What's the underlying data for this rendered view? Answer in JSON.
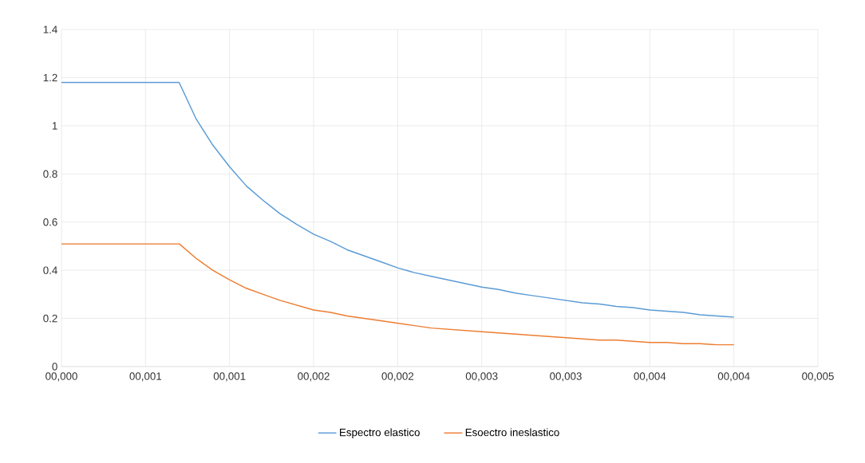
{
  "chart_data": {
    "type": "line",
    "categories": [
      "00,000",
      null,
      null,
      null,
      null,
      "00,001",
      null,
      null,
      null,
      null,
      "00,001",
      null,
      null,
      null,
      null,
      "00,002",
      null,
      null,
      null,
      null,
      "00,002",
      null,
      null,
      null,
      null,
      "00,003",
      null,
      null,
      null,
      null,
      "00,003",
      null,
      null,
      null,
      null,
      "00,004",
      null,
      null,
      null,
      null,
      "00,004",
      null,
      null,
      null,
      null,
      "00,005"
    ],
    "ylim": [
      0,
      1.4
    ],
    "yticks": [
      0,
      0.2,
      0.4,
      0.6,
      0.8,
      1,
      1.2,
      1.4
    ],
    "grid": true,
    "legend": "bottom",
    "marker": "none",
    "line_style": "solid",
    "series": [
      {
        "name": "Espectro elastico",
        "color": "#5b9bd5",
        "values": [
          1.18,
          1.18,
          1.18,
          1.18,
          1.18,
          1.18,
          1.18,
          1.18,
          1.03,
          0.92,
          0.83,
          0.75,
          0.69,
          0.635,
          0.59,
          0.55,
          0.52,
          0.485,
          0.46,
          0.435,
          0.41,
          0.39,
          0.375,
          0.36,
          0.345,
          0.33,
          0.32,
          0.305,
          0.295,
          0.285,
          0.275,
          0.265,
          0.26,
          0.25,
          0.245,
          0.235,
          0.23,
          0.225,
          0.215,
          0.21,
          0.205,
          null,
          null,
          null,
          null,
          null
        ]
      },
      {
        "name": "Esoectro ineslastico",
        "color": "#ed7d31",
        "values": [
          0.51,
          0.51,
          0.51,
          0.51,
          0.51,
          0.51,
          0.51,
          0.51,
          0.45,
          0.4,
          0.36,
          0.325,
          0.3,
          0.275,
          0.255,
          0.235,
          0.225,
          0.21,
          0.2,
          0.19,
          0.18,
          0.17,
          0.16,
          0.155,
          0.15,
          0.145,
          0.14,
          0.135,
          0.13,
          0.125,
          0.12,
          0.115,
          0.11,
          0.11,
          0.105,
          0.1,
          0.1,
          0.095,
          0.095,
          0.09,
          0.09,
          null,
          null,
          null,
          null,
          null
        ]
      }
    ]
  }
}
